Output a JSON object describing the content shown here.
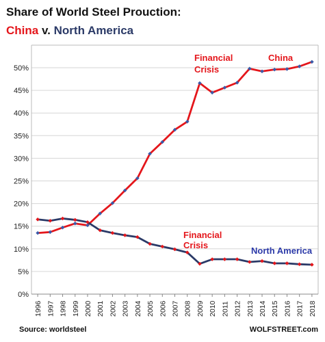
{
  "title": {
    "line1": "Share of World Steel Prouction:",
    "china": "China",
    "v": "v.",
    "na": "North America"
  },
  "footer": {
    "source": "Source: worldsteel",
    "brand": "WOLFSTREET.com"
  },
  "colors": {
    "china": "#e4161b",
    "north_america": "#2b3a67",
    "marker": "#3b5aa8",
    "grid": "#d6d6d6"
  },
  "chart_data": {
    "type": "line",
    "x": [
      "1996",
      "1997",
      "1998",
      "1999",
      "2000",
      "2001",
      "2002",
      "2003",
      "2004",
      "2005",
      "2006",
      "2007",
      "2008",
      "2009",
      "2010",
      "2011",
      "2012",
      "2013",
      "2014",
      "2015",
      "2016",
      "2017",
      "2018"
    ],
    "ylim": [
      0,
      50
    ],
    "yticks": [
      "0%",
      "5%",
      "10%",
      "15%",
      "20%",
      "25%",
      "30%",
      "35%",
      "40%",
      "45%",
      "50%"
    ],
    "grid": true,
    "series": [
      {
        "name": "China",
        "values": [
          13.5,
          13.7,
          14.7,
          15.6,
          15.2,
          17.8,
          20.1,
          22.9,
          25.6,
          31.0,
          33.6,
          36.3,
          38.1,
          46.6,
          44.5,
          45.6,
          46.7,
          49.8,
          49.2,
          49.6,
          49.7,
          50.3,
          51.3
        ]
      },
      {
        "name": "North America",
        "values": [
          16.5,
          16.2,
          16.7,
          16.4,
          15.9,
          14.1,
          13.5,
          13.0,
          12.6,
          11.1,
          10.5,
          9.9,
          9.2,
          6.7,
          7.7,
          7.7,
          7.7,
          7.1,
          7.3,
          6.8,
          6.8,
          6.6,
          6.5
        ]
      }
    ],
    "annotations": [
      {
        "text": "Financial",
        "text2": "Crisis",
        "series": "China"
      },
      {
        "text": "China",
        "series": "China"
      },
      {
        "text": "Financial",
        "text2": "Crisis",
        "series": "North America"
      },
      {
        "text": "North America",
        "series": "North America"
      }
    ]
  }
}
